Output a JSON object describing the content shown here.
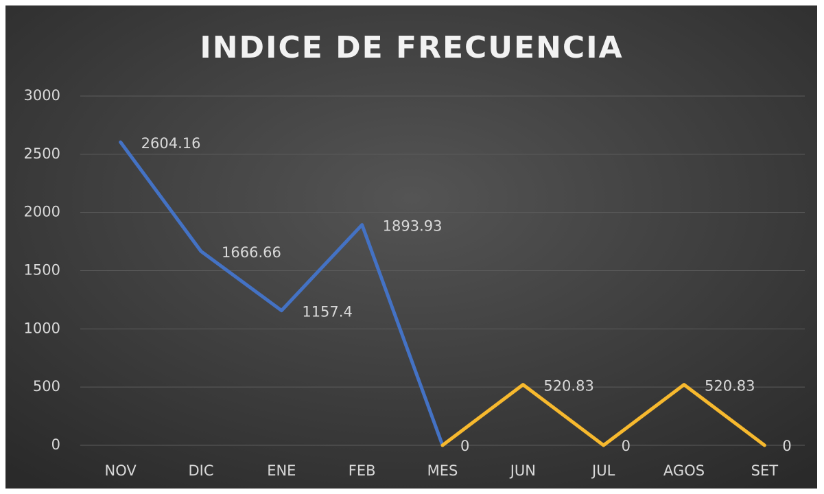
{
  "chart_data": {
    "type": "line",
    "title": "INDICE DE FRECUENCIA",
    "categories": [
      "NOV",
      "DIC",
      "ENE",
      "FEB",
      "MES",
      "JUN",
      "JUL",
      "AGOS",
      "SET"
    ],
    "series": [
      {
        "color": "#4472c4",
        "values": [
          2604.16,
          1666.66,
          1157.4,
          1893.93,
          0,
          null,
          null,
          null,
          null
        ]
      },
      {
        "color": "#f7b92e",
        "values": [
          null,
          null,
          null,
          null,
          0,
          520.83,
          0,
          520.83,
          0
        ]
      }
    ],
    "ylim": [
      0,
      3000
    ],
    "yticks": [
      0,
      500,
      1000,
      1500,
      2000,
      2500,
      3000
    ],
    "grid": true
  }
}
